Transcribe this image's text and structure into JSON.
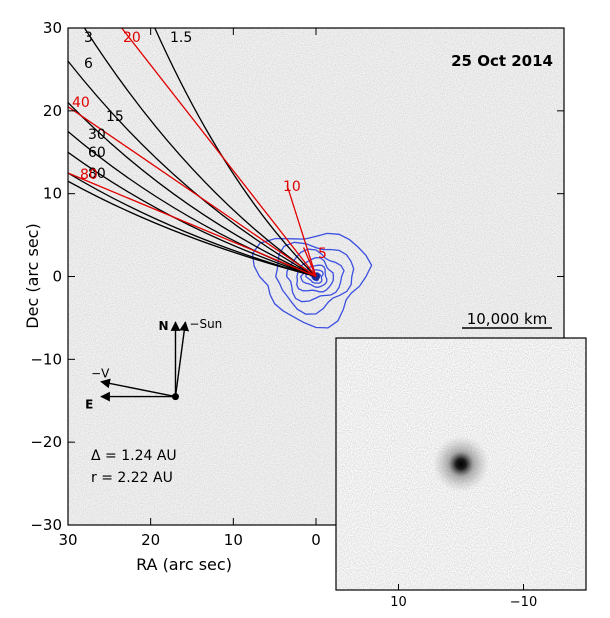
{
  "chart_data": [
    {
      "type": "contour",
      "date_label": "25 Oct 2014",
      "xlabel": "RA (arc sec)",
      "ylabel": "Dec (arc sec)",
      "xlim": [
        30,
        -30
      ],
      "ylim": [
        -30,
        30
      ],
      "x_ticks": [
        30,
        20,
        10,
        0
      ],
      "y_ticks": [
        30,
        20,
        10,
        0,
        -10,
        -20,
        -30
      ],
      "x_tick_labels": [
        "30",
        "20",
        "10",
        "0"
      ],
      "y_tick_labels": [
        "30",
        "20",
        "10",
        "0",
        "−10",
        "−20",
        "−30"
      ],
      "nucleus": [
        0,
        0
      ],
      "contour_color": "#3b4fe0",
      "contours": [
        {
          "rx": 7.0,
          "ry": 5.5
        },
        {
          "rx": 5.0,
          "ry": 4.0
        },
        {
          "rx": 3.6,
          "ry": 2.9
        },
        {
          "rx": 2.4,
          "ry": 2.0
        },
        {
          "rx": 1.6,
          "ry": 1.3
        },
        {
          "rx": 1.0,
          "ry": 0.8
        },
        {
          "rx": 0.55,
          "ry": 0.45
        }
      ],
      "syndynes": [
        {
          "label": "1.5",
          "color": "#000000",
          "end": [
            19.5,
            30
          ]
        },
        {
          "label": "3",
          "color": "#000000",
          "end": [
            28,
            30
          ]
        },
        {
          "label": "6",
          "color": "#000000",
          "end": [
            30,
            26
          ]
        },
        {
          "label": "15",
          "color": "#000000",
          "end": [
            30,
            21
          ]
        },
        {
          "label": "30",
          "color": "#000000",
          "end": [
            30,
            17.5
          ]
        },
        {
          "label": "60",
          "color": "#000000",
          "end": [
            30,
            15
          ]
        },
        {
          "label": "80",
          "color": "#000000",
          "end": [
            30,
            12.5
          ]
        },
        {
          "label": "",
          "color": "#000000",
          "end": [
            30,
            11.5
          ]
        }
      ],
      "synchrones": [
        {
          "label": "5",
          "color": "#e00000",
          "end": [
            1.5,
            3.5
          ]
        },
        {
          "label": "10",
          "color": "#e00000",
          "end": [
            3.5,
            11.0
          ]
        },
        {
          "label": "20",
          "color": "#e00000",
          "end": [
            23.5,
            30
          ]
        },
        {
          "label": "40",
          "color": "#e00000",
          "end": [
            30,
            20.5
          ]
        },
        {
          "label": "80",
          "color": "#e00000",
          "end": [
            30,
            12.5
          ]
        }
      ],
      "directions": {
        "origin": [
          17,
          -14.5
        ],
        "arrows": [
          {
            "label": "N",
            "dx": 0,
            "dy": 9,
            "bold": true
          },
          {
            "label": "−Sun",
            "dx": -1.2,
            "dy": 9,
            "bold": false
          },
          {
            "label": "E",
            "dx": 9,
            "dy": 0,
            "bold": true
          },
          {
            "label": "−V",
            "dx": 9,
            "dy": 1.8,
            "bold": false
          }
        ]
      },
      "geometry": {
        "delta": "Δ = 1.24 AU",
        "r": "r = 2.22 AU"
      }
    },
    {
      "type": "image",
      "scale_bar_label": "10,000 km",
      "xlim": [
        20,
        -20
      ],
      "x_ticks": [
        10,
        -10
      ],
      "x_tick_labels": [
        "10",
        "−10"
      ],
      "source_position": [
        0,
        0
      ]
    }
  ]
}
